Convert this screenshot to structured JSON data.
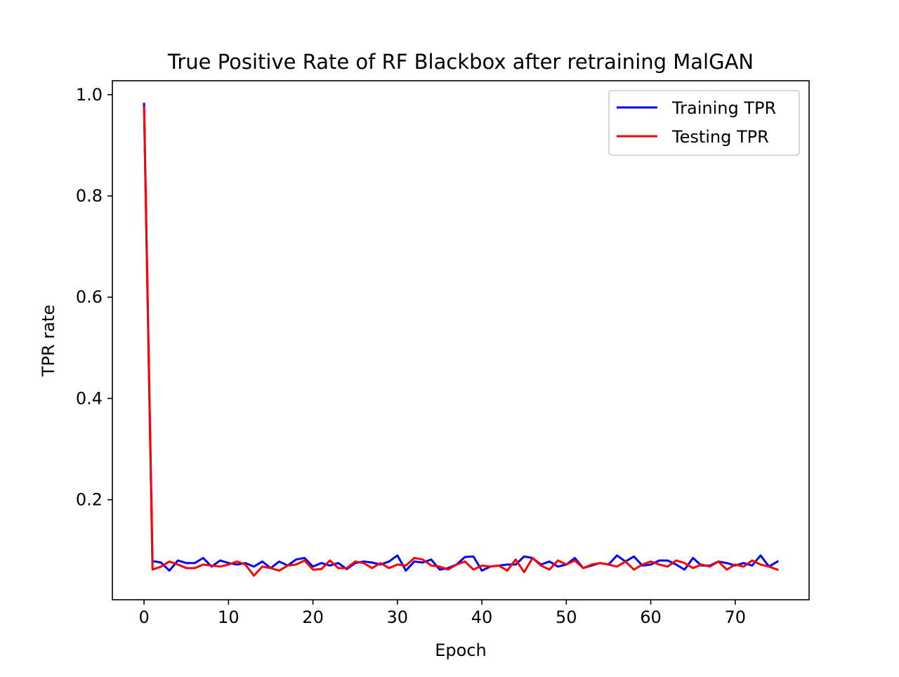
{
  "chart_data": {
    "type": "line",
    "title": "True Positive Rate of RF Blackbox after retraining MalGAN",
    "xlabel": "Epoch",
    "ylabel": "TPR rate",
    "xlim": [
      -3.75,
      78.75
    ],
    "ylim": [
      0.0025,
      1.0275
    ],
    "xticks": [
      0,
      10,
      20,
      30,
      40,
      50,
      60,
      70
    ],
    "xtick_labels": [
      "0",
      "10",
      "20",
      "30",
      "40",
      "50",
      "60",
      "70"
    ],
    "yticks": [
      0.2,
      0.4,
      0.6,
      0.8,
      1.0
    ],
    "ytick_labels": [
      "0.2",
      "0.4",
      "0.6",
      "0.8",
      "1.0"
    ],
    "grid": false,
    "legend_position": "top-right",
    "x": [
      0,
      1,
      2,
      3,
      4,
      5,
      6,
      7,
      8,
      9,
      10,
      11,
      12,
      13,
      14,
      15,
      16,
      17,
      18,
      19,
      20,
      21,
      22,
      23,
      24,
      25,
      26,
      27,
      28,
      29,
      30,
      31,
      32,
      33,
      34,
      35,
      36,
      37,
      38,
      39,
      40,
      41,
      42,
      43,
      44,
      45,
      46,
      47,
      48,
      49,
      50,
      51,
      52,
      53,
      54,
      55,
      56,
      57,
      58,
      59,
      60,
      61,
      62,
      63,
      64,
      65,
      66,
      67,
      68,
      69,
      70,
      71,
      72,
      73,
      74,
      75
    ],
    "series": [
      {
        "name": "Training TPR",
        "color": "#0000ff",
        "values": [
          0.982,
          0.079,
          0.076,
          0.06,
          0.08,
          0.075,
          0.075,
          0.085,
          0.068,
          0.08,
          0.075,
          0.072,
          0.075,
          0.068,
          0.078,
          0.065,
          0.078,
          0.07,
          0.082,
          0.085,
          0.068,
          0.075,
          0.07,
          0.075,
          0.063,
          0.075,
          0.078,
          0.076,
          0.072,
          0.078,
          0.09,
          0.06,
          0.078,
          0.076,
          0.082,
          0.062,
          0.065,
          0.072,
          0.087,
          0.088,
          0.06,
          0.068,
          0.07,
          0.072,
          0.072,
          0.088,
          0.085,
          0.072,
          0.078,
          0.068,
          0.072,
          0.085,
          0.065,
          0.07,
          0.075,
          0.072,
          0.09,
          0.078,
          0.088,
          0.07,
          0.072,
          0.08,
          0.08,
          0.072,
          0.062,
          0.085,
          0.07,
          0.07,
          0.078,
          0.075,
          0.07,
          0.075,
          0.07,
          0.09,
          0.068,
          0.078
        ]
      },
      {
        "name": "Testing TPR",
        "color": "#ff0000",
        "values": [
          0.975,
          0.062,
          0.068,
          0.078,
          0.072,
          0.065,
          0.065,
          0.072,
          0.07,
          0.068,
          0.072,
          0.078,
          0.072,
          0.05,
          0.068,
          0.065,
          0.06,
          0.07,
          0.072,
          0.08,
          0.062,
          0.063,
          0.08,
          0.065,
          0.065,
          0.078,
          0.075,
          0.065,
          0.075,
          0.065,
          0.072,
          0.07,
          0.085,
          0.082,
          0.07,
          0.068,
          0.062,
          0.072,
          0.078,
          0.062,
          0.07,
          0.068,
          0.07,
          0.06,
          0.082,
          0.057,
          0.085,
          0.07,
          0.062,
          0.08,
          0.072,
          0.08,
          0.065,
          0.072,
          0.075,
          0.072,
          0.068,
          0.078,
          0.062,
          0.072,
          0.078,
          0.072,
          0.068,
          0.08,
          0.075,
          0.065,
          0.072,
          0.068,
          0.078,
          0.062,
          0.072,
          0.068,
          0.08,
          0.072,
          0.068,
          0.062
        ]
      }
    ]
  }
}
